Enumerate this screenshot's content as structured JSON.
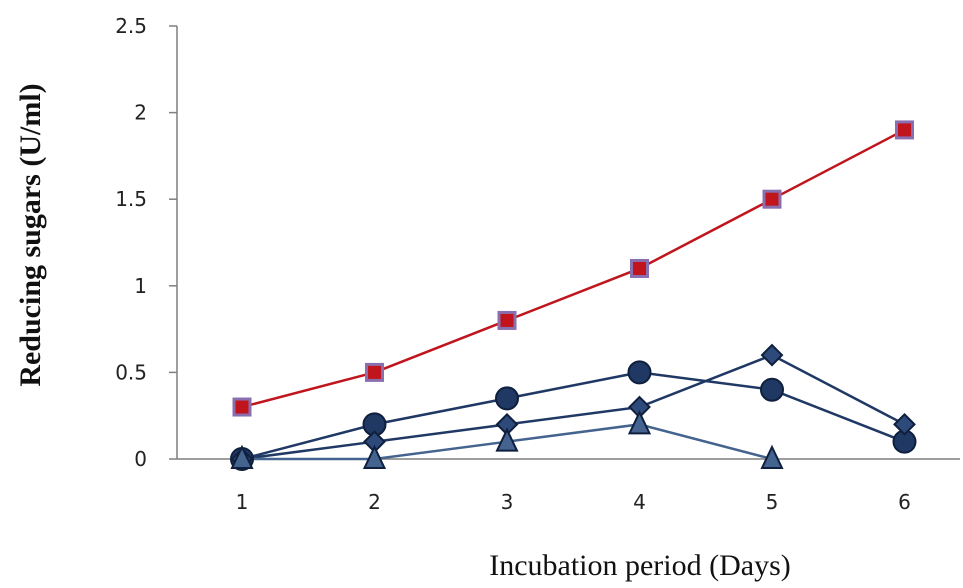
{
  "chart_data": {
    "type": "line",
    "title": "",
    "xlabel": "Incubation period (Days)",
    "ylabel": "Reducing sugars  (U/ml)",
    "x": [
      1,
      2,
      3,
      4,
      5,
      6
    ],
    "x_tick_labels": [
      "1",
      "2",
      "3",
      "4",
      "5",
      "6"
    ],
    "ylim": [
      0,
      2.5
    ],
    "y_ticks": [
      0,
      0.5,
      1,
      1.5,
      2,
      2.5
    ],
    "y_tick_labels": [
      "0",
      "0.5",
      "1",
      "1.5",
      "2",
      "2.5"
    ],
    "grid": false,
    "legend": "none",
    "series": [
      {
        "marker": "square",
        "line_color": "#c0151d",
        "marker_fill": "#c0151d",
        "marker_stroke": "#8a6fb0",
        "values": [
          0.3,
          0.5,
          0.8,
          1.1,
          1.5,
          1.9
        ]
      },
      {
        "marker": "circle",
        "line_color": "#1f3864",
        "marker_fill": "#1f3864",
        "marker_stroke": "#0f1f3d",
        "values": [
          0.0,
          0.2,
          0.35,
          0.5,
          0.4,
          0.1
        ]
      },
      {
        "marker": "diamond",
        "line_color": "#1f3864",
        "marker_fill": "#2e4a7a",
        "marker_stroke": "#0f1f3d",
        "values": [
          0.0,
          0.1,
          0.2,
          0.3,
          0.6,
          0.2
        ]
      },
      {
        "marker": "triangle",
        "line_color": "#44648f",
        "marker_fill": "#44648f",
        "marker_stroke": "#0f1f3d",
        "values": [
          0.0,
          0.0,
          0.1,
          0.2,
          0.0,
          null
        ]
      }
    ]
  }
}
